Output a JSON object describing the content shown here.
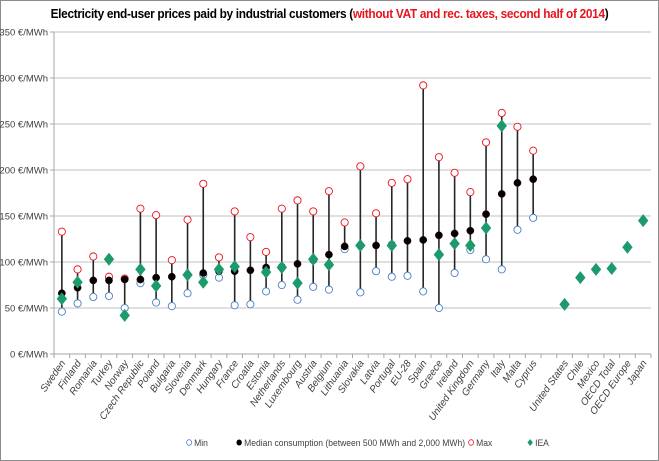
{
  "chart_data": {
    "type": "scatter",
    "title": "Electricity end-user prices paid by industrial customers",
    "title_highlight": "without VAT and rec. taxes, second half of 2014",
    "xlabel": "",
    "ylabel": "",
    "ylim": [
      0,
      350
    ],
    "yticks": [
      {
        "value": 0,
        "label": "0 €/MWh"
      },
      {
        "value": 50,
        "label": "50 €/MWh"
      },
      {
        "value": 100,
        "label": "100 €/MWh"
      },
      {
        "value": 150,
        "label": "150 €/MWh"
      },
      {
        "value": 200,
        "label": "200 €/MWh"
      },
      {
        "value": 250,
        "label": "250 €/MWh"
      },
      {
        "value": 300,
        "label": "300 €/MWh"
      },
      {
        "value": 350,
        "label": "350 €/MWh"
      }
    ],
    "grid": true,
    "legend_position": "bottom",
    "categories": [
      "Sweden",
      "Finland",
      "Romania",
      "Turkey",
      "Norway",
      "Czech Republic",
      "Poland",
      "Bulgaria",
      "Slovenia",
      "Denmark",
      "Hungary",
      "France",
      "Croatia",
      "Estonia",
      "Netherlands",
      "Luxembourg",
      "Austria",
      "Belgium",
      "Lithuania",
      "Slovakia",
      "Latvia",
      "Portugal",
      "EU-28",
      "Spain",
      "Greece",
      "Ireland",
      "United Kingdom",
      "Germany",
      "Italy",
      "Malta",
      "Cyprus",
      "",
      "United States",
      "Chile",
      "Mexico",
      "OECD Total",
      "OECD Europe",
      "Japan"
    ],
    "series": [
      {
        "name": "Min",
        "key": "min",
        "color": "#4a7fc1",
        "values": [
          46,
          55,
          62,
          63,
          50,
          77,
          56,
          52,
          66,
          86,
          83,
          53,
          54,
          68,
          75,
          59,
          73,
          70,
          114,
          67,
          90,
          84,
          85,
          68,
          50,
          88,
          113,
          103,
          92,
          135,
          148,
          null,
          null,
          null,
          null,
          null,
          null,
          null
        ]
      },
      {
        "name": "Median consumption (between 500 MWh and 2,000 MWh)",
        "key": "median",
        "color": "#000000",
        "values": [
          66,
          72,
          80,
          80,
          81,
          81,
          83,
          84,
          86,
          88,
          90,
          90,
          91,
          94,
          95,
          98,
          102,
          108,
          117,
          118,
          118,
          119,
          123,
          124,
          129,
          131,
          134,
          152,
          174,
          186,
          190,
          null,
          null,
          null,
          null,
          null,
          null,
          null
        ]
      },
      {
        "name": "Max",
        "key": "max",
        "color": "#e8141e",
        "values": [
          133,
          92,
          106,
          84,
          82,
          158,
          151,
          102,
          146,
          185,
          105,
          155,
          127,
          111,
          158,
          167,
          155,
          177,
          143,
          204,
          153,
          186,
          190,
          292,
          214,
          197,
          176,
          230,
          262,
          247,
          221,
          null,
          null,
          null,
          null,
          null,
          null,
          null
        ]
      },
      {
        "name": "IEA",
        "key": "iea",
        "color": "#1d9a6c",
        "values": [
          60,
          78,
          null,
          103,
          42,
          92,
          74,
          null,
          86,
          78,
          92,
          95,
          null,
          89,
          94,
          77,
          103,
          97,
          null,
          118,
          null,
          118,
          null,
          null,
          108,
          120,
          118,
          137,
          248,
          null,
          null,
          null,
          54,
          83,
          92,
          93,
          116,
          145
        ]
      }
    ]
  },
  "legend": {
    "min_label": "Min",
    "median_label": "Median consumption (between 500 MWh and 2,000 MWh)",
    "max_label": "Max",
    "iea_label": "IEA"
  },
  "colors": {
    "min": "#4a7fc1",
    "median": "#000000",
    "max": "#e8141e",
    "iea": "#1d9a6c",
    "title_highlight": "#e8141e"
  }
}
